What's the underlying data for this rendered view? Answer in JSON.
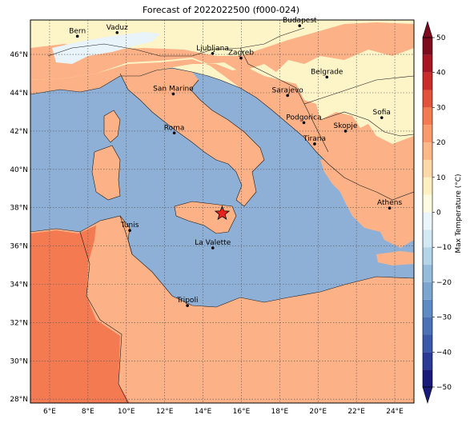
{
  "title": "Forecast of 2022022500 (f000-024)",
  "colorbar": {
    "label": "Max Temperature (°C)",
    "ticks": [
      -50,
      -40,
      -30,
      -20,
      -10,
      0,
      10,
      20,
      30,
      40,
      50
    ],
    "bands": [
      {
        "from": -50,
        "to": -45,
        "color": "#1a1a7a"
      },
      {
        "from": -45,
        "to": -40,
        "color": "#2b3a94"
      },
      {
        "from": -40,
        "to": -35,
        "color": "#3a5aa8"
      },
      {
        "from": -35,
        "to": -30,
        "color": "#4a72b4"
      },
      {
        "from": -30,
        "to": -25,
        "color": "#5e8cc2"
      },
      {
        "from": -25,
        "to": -20,
        "color": "#7aa6d0"
      },
      {
        "from": -20,
        "to": -15,
        "color": "#96bcdc"
      },
      {
        "from": -15,
        "to": -10,
        "color": "#b4d4e8"
      },
      {
        "from": -10,
        "to": -5,
        "color": "#d2e8f2"
      },
      {
        "from": -5,
        "to": 0,
        "color": "#eaf6fb"
      },
      {
        "from": 0,
        "to": 5,
        "color": "#fffbe0"
      },
      {
        "from": 5,
        "to": 10,
        "color": "#fef0c0"
      },
      {
        "from": 10,
        "to": 15,
        "color": "#fdd8a8"
      },
      {
        "from": 15,
        "to": 20,
        "color": "#fcb888"
      },
      {
        "from": 20,
        "to": 25,
        "color": "#fa9a6c"
      },
      {
        "from": 25,
        "to": 30,
        "color": "#f47a52"
      },
      {
        "from": 30,
        "to": 35,
        "color": "#e2523c"
      },
      {
        "from": 35,
        "to": 40,
        "color": "#ca2c2c"
      },
      {
        "from": 40,
        "to": 45,
        "color": "#a81424"
      },
      {
        "from": 45,
        "to": 50,
        "color": "#7e0a1e"
      }
    ]
  },
  "map": {
    "lon_range": [
      5,
      25
    ],
    "lat_range": [
      27.8,
      47.8
    ],
    "lon_ticks": [
      "6°E",
      "8°E",
      "10°E",
      "12°E",
      "14°E",
      "16°E",
      "18°E",
      "20°E",
      "22°E",
      "24°E"
    ],
    "lat_ticks": [
      "28°N",
      "30°N",
      "32°N",
      "34°N",
      "36°N",
      "38°N",
      "40°N",
      "42°N",
      "44°N",
      "46°N"
    ],
    "fill_colors": {
      "sea": "#8fb0d6",
      "mild": "#fdf4c8",
      "warm": "#fcb286",
      "hot": "#f47a52",
      "cool": "#e8f4fa"
    },
    "marker": {
      "lon": 15.0,
      "lat": 37.7,
      "color": "#e8231e",
      "icon": "star-icon"
    },
    "cities": [
      {
        "name": "Bern",
        "lon": 7.45,
        "lat": 46.95
      },
      {
        "name": "Vaduz",
        "lon": 9.52,
        "lat": 47.14
      },
      {
        "name": "Budapest",
        "lon": 19.04,
        "lat": 47.5
      },
      {
        "name": "Ljubljana",
        "lon": 14.5,
        "lat": 46.05
      },
      {
        "name": "Zagreb",
        "lon": 15.98,
        "lat": 45.81
      },
      {
        "name": "Belgrade",
        "lon": 20.46,
        "lat": 44.82
      },
      {
        "name": "Sarajevo",
        "lon": 18.41,
        "lat": 43.86
      },
      {
        "name": "San Marino",
        "lon": 12.45,
        "lat": 43.94
      },
      {
        "name": "Sofia",
        "lon": 23.32,
        "lat": 42.7
      },
      {
        "name": "Podgorica",
        "lon": 19.26,
        "lat": 42.44
      },
      {
        "name": "Skopje",
        "lon": 21.43,
        "lat": 42.0
      },
      {
        "name": "Roma",
        "lon": 12.5,
        "lat": 41.9
      },
      {
        "name": "Tirana",
        "lon": 19.82,
        "lat": 41.33
      },
      {
        "name": "Athens",
        "lon": 23.73,
        "lat": 37.98
      },
      {
        "name": "Tunis",
        "lon": 10.18,
        "lat": 36.81
      },
      {
        "name": "La Valette",
        "lon": 14.51,
        "lat": 35.9
      },
      {
        "name": "Tripoli",
        "lon": 13.19,
        "lat": 32.89
      }
    ]
  }
}
